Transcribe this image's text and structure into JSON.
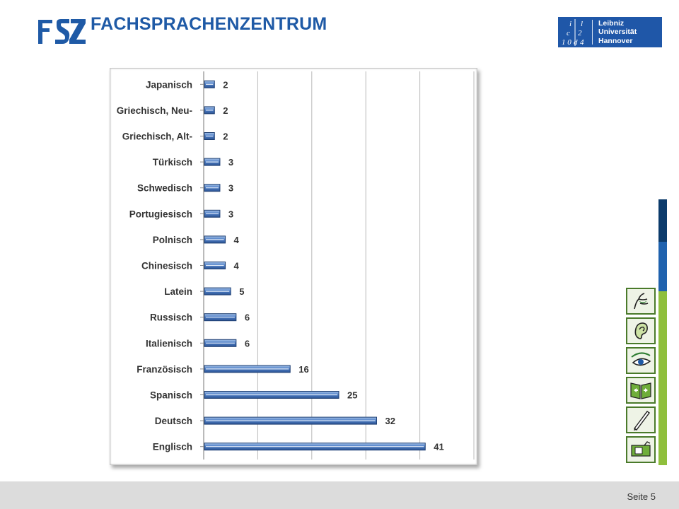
{
  "header": {
    "logo_mark": "FSZ",
    "title": "FACHSPRACHENZENTRUM",
    "partner_logo_lines": [
      "Leibniz",
      "Universität",
      "Hannover"
    ]
  },
  "colors": {
    "brand_blue": "#1f5aa6",
    "bar_blue": "#4f7fc6",
    "dark_navy": "#0c3b6b",
    "green": "#8fbf3c"
  },
  "side_icons": [
    "speaking-icon",
    "listening-icon",
    "reading-icon",
    "book-icon",
    "writing-icon",
    "media-icon"
  ],
  "footer": {
    "page_label": "Seite 5"
  },
  "chart_data": {
    "type": "bar",
    "orientation": "horizontal",
    "categories": [
      "Japanisch",
      "Griechisch, Neu-",
      "Griechisch, Alt-",
      "Türkisch",
      "Schwedisch",
      "Portugiesisch",
      "Polnisch",
      "Chinesisch",
      "Latein",
      "Russisch",
      "Italienisch",
      "Französisch",
      "Spanisch",
      "Deutsch",
      "Englisch"
    ],
    "values": [
      2,
      2,
      2,
      3,
      3,
      3,
      4,
      4,
      5,
      6,
      6,
      16,
      25,
      32,
      41
    ],
    "title": "",
    "xlabel": "",
    "ylabel": "",
    "xlim": [
      0,
      50
    ],
    "grid": true,
    "legend": "none"
  }
}
